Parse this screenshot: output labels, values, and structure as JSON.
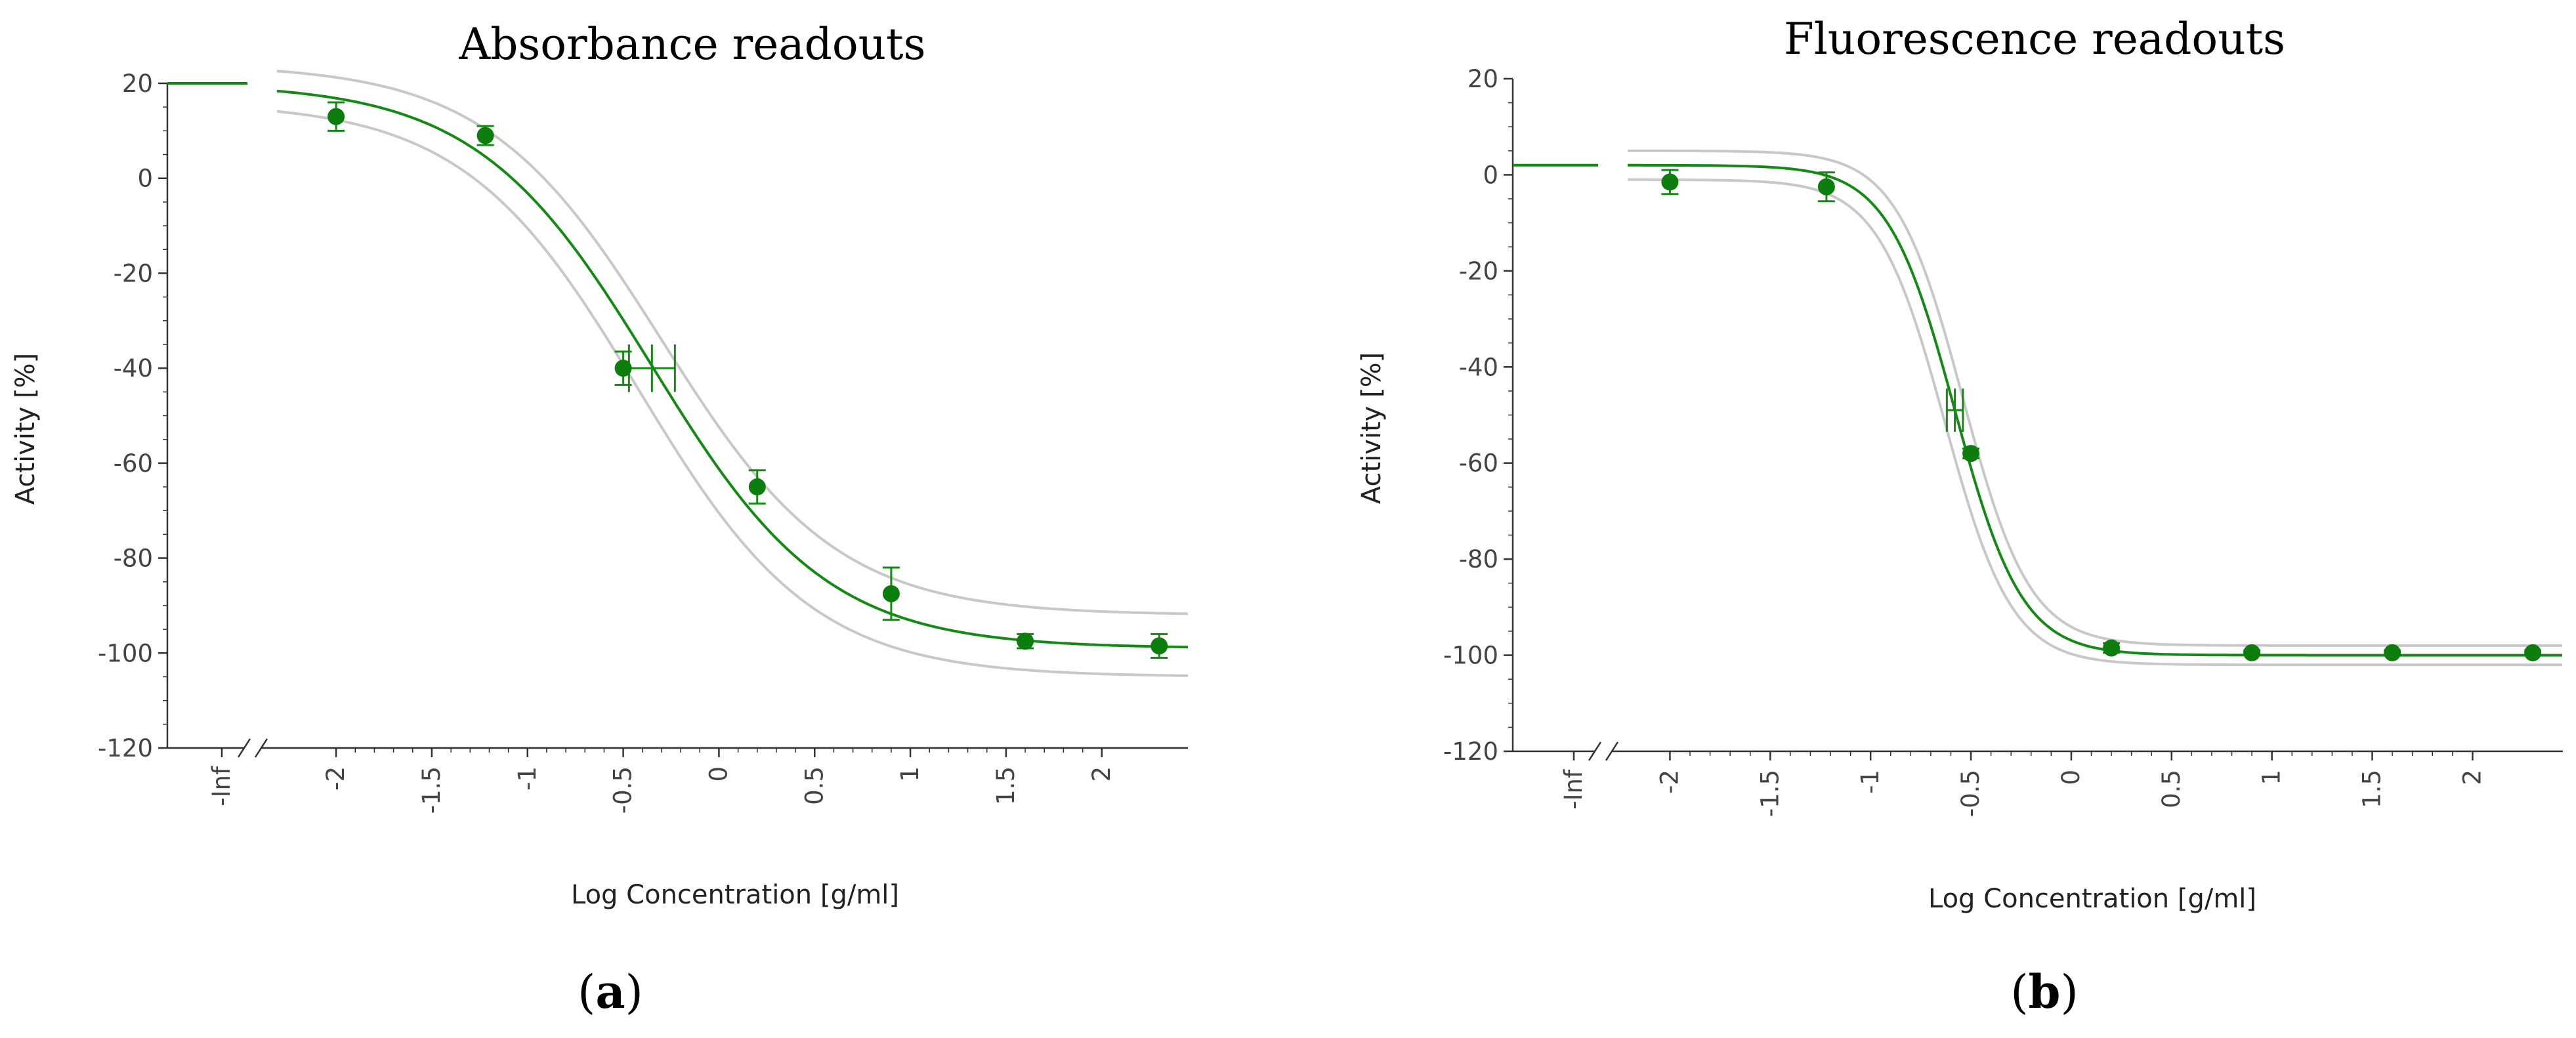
{
  "chart_data": [
    {
      "type": "line",
      "title": "Absorbance readouts",
      "xlabel": "Log Concentration [g/ml]",
      "ylabel": "Activity [%]",
      "panel_label": "a",
      "panel_label_parts": [
        "(",
        "a",
        ")"
      ],
      "xlim": [
        -2.35,
        2.45
      ],
      "ylim": [
        -120,
        20
      ],
      "x_ticks": [
        -2,
        -1.5,
        -1,
        -0.5,
        0,
        0.5,
        1,
        1.5,
        2
      ],
      "x_tick_labels": [
        "-2",
        "-1.5",
        "-1",
        "-0.5",
        "0",
        "0.5",
        "1",
        "1.5",
        "2"
      ],
      "y_ticks": [
        20,
        0,
        -20,
        -40,
        -60,
        -80,
        -100,
        -120
      ],
      "y_tick_labels": [
        "20",
        "0",
        "-20",
        "-40",
        "-60",
        "-80",
        "-100",
        "-120"
      ],
      "inf_label": "-Inf",
      "inf_value": 20,
      "fit": {
        "top": 20,
        "bottom": -99,
        "logEC50": -0.35,
        "hill": -0.95
      },
      "ci_upper": {
        "top": 24,
        "bottom": -92,
        "logEC50": -0.3,
        "hill": -0.95
      },
      "ci_lower": {
        "top": 16,
        "bottom": -105,
        "logEC50": -0.42,
        "hill": -0.95
      },
      "ec50_marker": {
        "x": -0.35,
        "y": -40,
        "x_err": 0.12,
        "y_err": 5
      },
      "series": [
        {
          "name": "Absorbance",
          "x": [
            -2,
            -1.22,
            -0.5,
            0.2,
            0.9,
            1.6,
            2.3
          ],
          "y": [
            13,
            9,
            -40,
            -65,
            -87.5,
            -97.5,
            -98.5
          ],
          "err": [
            3,
            2,
            3.5,
            3.5,
            5.5,
            1.5,
            2.5
          ]
        }
      ]
    },
    {
      "type": "line",
      "title": "Fluorescence readouts",
      "xlabel": "Log Concentration [g/ml]",
      "ylabel": "Activity [%]",
      "panel_label": "b",
      "panel_label_parts": [
        "(",
        "b",
        ")"
      ],
      "xlim": [
        -2.25,
        2.45
      ],
      "ylim": [
        -120,
        20
      ],
      "x_ticks": [
        -2,
        -1.5,
        -1,
        -0.5,
        0,
        0.5,
        1,
        1.5,
        2
      ],
      "x_tick_labels": [
        "-2",
        "-1.5",
        "-1",
        "-0.5",
        "0",
        "0.5",
        "1",
        "1.5",
        "2"
      ],
      "y_ticks": [
        20,
        0,
        -20,
        -40,
        -60,
        -80,
        -100,
        -120
      ],
      "y_tick_labels": [
        "20",
        "0",
        "-20",
        "-40",
        "-60",
        "-80",
        "-100",
        "-120"
      ],
      "inf_label": "-Inf",
      "inf_value": 2,
      "fit": {
        "top": 2,
        "bottom": -100,
        "logEC50": -0.58,
        "hill": -2.6
      },
      "ci_upper": {
        "top": 5,
        "bottom": -98,
        "logEC50": -0.54,
        "hill": -2.6
      },
      "ci_lower": {
        "top": -1,
        "bottom": -102,
        "logEC50": -0.63,
        "hill": -2.6
      },
      "ec50_marker": {
        "x": -0.58,
        "y": -49,
        "x_err": 0.04,
        "y_err": 4.5
      },
      "series": [
        {
          "name": "Fluorescence",
          "x": [
            -2,
            -1.22,
            -0.5,
            0.2,
            0.9,
            1.6,
            2.3
          ],
          "y": [
            -1.5,
            -2.5,
            -58,
            -98.5,
            -99.5,
            -99.5,
            -99.5
          ],
          "err": [
            2.5,
            3,
            1,
            1,
            0.5,
            0.5,
            0.5
          ]
        }
      ]
    }
  ]
}
